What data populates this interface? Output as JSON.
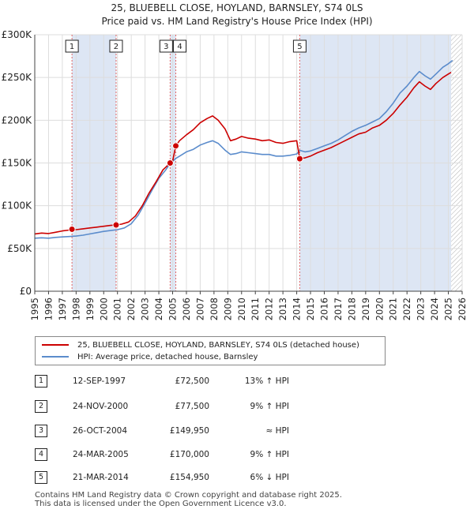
{
  "title_line1": "25, BLUEBELL CLOSE, HOYLAND, BARNSLEY, S74 0LS",
  "title_line2": "Price paid vs. HM Land Registry's House Price Index (HPI)",
  "chart_data": {
    "type": "line",
    "title": "25, BLUEBELL CLOSE, HOYLAND, BARNSLEY, S74 0LS — Price paid vs. HM Land Registry's House Price Index (HPI)",
    "xlabel": "",
    "ylabel": "",
    "xlim": [
      1995,
      2026
    ],
    "ylim": [
      0,
      300000
    ],
    "x_ticks": [
      "1995",
      "1996",
      "1997",
      "1998",
      "1999",
      "2000",
      "2001",
      "2002",
      "2003",
      "2004",
      "2005",
      "2006",
      "2007",
      "2008",
      "2009",
      "2010",
      "2011",
      "2012",
      "2013",
      "2014",
      "2015",
      "2016",
      "2017",
      "2018",
      "2019",
      "2020",
      "2021",
      "2022",
      "2023",
      "2024",
      "2025",
      "2026"
    ],
    "y_ticks": [
      {
        "value": 0,
        "label": "£0"
      },
      {
        "value": 50000,
        "label": "£50K"
      },
      {
        "value": 100000,
        "label": "£100K"
      },
      {
        "value": 150000,
        "label": "£150K"
      },
      {
        "value": 200000,
        "label": "£200K"
      },
      {
        "value": 250000,
        "label": "£250K"
      },
      {
        "value": 300000,
        "label": "£300K"
      }
    ],
    "grid": true,
    "forecast_from": 2025.2,
    "colors": {
      "property": "#cc0000",
      "hpi": "#5b8ccc",
      "marker_line": "#e06666",
      "shade": "#dde6f4",
      "grid": "#dddddd"
    },
    "series": [
      {
        "name": "25, BLUEBELL CLOSE, HOYLAND, BARNSLEY, S74 0LS (detached house)",
        "color": "#cc0000",
        "points": [
          [
            1995.0,
            67000
          ],
          [
            1995.5,
            68000
          ],
          [
            1996.0,
            67500
          ],
          [
            1996.5,
            69000
          ],
          [
            1997.0,
            70500
          ],
          [
            1997.5,
            71500
          ],
          [
            1997.7,
            72500
          ],
          [
            1998.0,
            72000
          ],
          [
            1998.5,
            73000
          ],
          [
            1999.0,
            74000
          ],
          [
            1999.5,
            75000
          ],
          [
            2000.0,
            76000
          ],
          [
            2000.5,
            77000
          ],
          [
            2000.9,
            77500
          ],
          [
            2001.3,
            78500
          ],
          [
            2001.8,
            81000
          ],
          [
            2002.3,
            88000
          ],
          [
            2002.8,
            100000
          ],
          [
            2003.3,
            115000
          ],
          [
            2003.8,
            128000
          ],
          [
            2004.3,
            142000
          ],
          [
            2004.82,
            149950
          ],
          [
            2005.0,
            152000
          ],
          [
            2005.23,
            170000
          ],
          [
            2005.5,
            176000
          ],
          [
            2006.0,
            183000
          ],
          [
            2006.5,
            189000
          ],
          [
            2007.0,
            197000
          ],
          [
            2007.5,
            202000
          ],
          [
            2007.9,
            205000
          ],
          [
            2008.3,
            200000
          ],
          [
            2008.8,
            190000
          ],
          [
            2009.2,
            176000
          ],
          [
            2009.6,
            178000
          ],
          [
            2010.0,
            181000
          ],
          [
            2010.5,
            179000
          ],
          [
            2011.0,
            178000
          ],
          [
            2011.5,
            176000
          ],
          [
            2012.0,
            177000
          ],
          [
            2012.5,
            174000
          ],
          [
            2013.0,
            173000
          ],
          [
            2013.5,
            175000
          ],
          [
            2014.0,
            176000
          ],
          [
            2014.22,
            154950
          ],
          [
            2014.6,
            156000
          ],
          [
            2015.0,
            158000
          ],
          [
            2015.5,
            162000
          ],
          [
            2016.0,
            165000
          ],
          [
            2016.5,
            168000
          ],
          [
            2017.0,
            172000
          ],
          [
            2017.5,
            176000
          ],
          [
            2018.0,
            180000
          ],
          [
            2018.5,
            184000
          ],
          [
            2019.0,
            186000
          ],
          [
            2019.5,
            191000
          ],
          [
            2020.0,
            194000
          ],
          [
            2020.5,
            200000
          ],
          [
            2021.0,
            208000
          ],
          [
            2021.5,
            218000
          ],
          [
            2022.0,
            227000
          ],
          [
            2022.5,
            238000
          ],
          [
            2022.9,
            245000
          ],
          [
            2023.3,
            240000
          ],
          [
            2023.7,
            236000
          ],
          [
            2024.1,
            243000
          ],
          [
            2024.6,
            250000
          ],
          [
            2025.0,
            254000
          ],
          [
            2025.2,
            256000
          ]
        ]
      },
      {
        "name": "HPI: Average price, detached house, Barnsley",
        "color": "#5b8ccc",
        "points": [
          [
            1995.0,
            62000
          ],
          [
            1995.5,
            62500
          ],
          [
            1996.0,
            62000
          ],
          [
            1996.5,
            63000
          ],
          [
            1997.0,
            63500
          ],
          [
            1997.5,
            64000
          ],
          [
            1998.0,
            64500
          ],
          [
            1998.5,
            65500
          ],
          [
            1999.0,
            67000
          ],
          [
            1999.5,
            68500
          ],
          [
            2000.0,
            70000
          ],
          [
            2000.5,
            71000
          ],
          [
            2001.0,
            72000
          ],
          [
            2001.5,
            74000
          ],
          [
            2002.0,
            79000
          ],
          [
            2002.5,
            89000
          ],
          [
            2003.0,
            103000
          ],
          [
            2003.5,
            118000
          ],
          [
            2004.0,
            132000
          ],
          [
            2004.5,
            142000
          ],
          [
            2004.82,
            149500
          ],
          [
            2005.2,
            155000
          ],
          [
            2005.6,
            159000
          ],
          [
            2006.0,
            163000
          ],
          [
            2006.5,
            166000
          ],
          [
            2007.0,
            171000
          ],
          [
            2007.5,
            174000
          ],
          [
            2007.9,
            176000
          ],
          [
            2008.3,
            173000
          ],
          [
            2008.8,
            165000
          ],
          [
            2009.2,
            160000
          ],
          [
            2009.6,
            161000
          ],
          [
            2010.0,
            163000
          ],
          [
            2010.5,
            162000
          ],
          [
            2011.0,
            161000
          ],
          [
            2011.5,
            160000
          ],
          [
            2012.0,
            160000
          ],
          [
            2012.5,
            158000
          ],
          [
            2013.0,
            158000
          ],
          [
            2013.5,
            159000
          ],
          [
            2014.0,
            160500
          ],
          [
            2014.22,
            164800
          ],
          [
            2014.6,
            163000
          ],
          [
            2015.0,
            164000
          ],
          [
            2015.5,
            167000
          ],
          [
            2016.0,
            170000
          ],
          [
            2016.5,
            173000
          ],
          [
            2017.0,
            177000
          ],
          [
            2017.5,
            182000
          ],
          [
            2018.0,
            187000
          ],
          [
            2018.5,
            191000
          ],
          [
            2019.0,
            194000
          ],
          [
            2019.5,
            198000
          ],
          [
            2020.0,
            202000
          ],
          [
            2020.5,
            210000
          ],
          [
            2021.0,
            220000
          ],
          [
            2021.5,
            232000
          ],
          [
            2022.0,
            240000
          ],
          [
            2022.5,
            250000
          ],
          [
            2022.9,
            257000
          ],
          [
            2023.3,
            252000
          ],
          [
            2023.7,
            248000
          ],
          [
            2024.1,
            254000
          ],
          [
            2024.6,
            262000
          ],
          [
            2025.0,
            266000
          ],
          [
            2025.3,
            270000
          ]
        ]
      }
    ],
    "sales": [
      {
        "num": "1",
        "x": 1997.7,
        "value": 72500
      },
      {
        "num": "2",
        "x": 2000.9,
        "value": 77500
      },
      {
        "num": "3",
        "x": 2004.82,
        "value": 149950
      },
      {
        "num": "4",
        "x": 2005.23,
        "value": 170000
      },
      {
        "num": "5",
        "x": 2014.22,
        "value": 154950
      }
    ]
  },
  "legend": {
    "property_label": "25, BLUEBELL CLOSE, HOYLAND, BARNSLEY, S74 0LS (detached house)",
    "hpi_label": "HPI: Average price, detached house, Barnsley"
  },
  "transactions": [
    {
      "num": "1",
      "date": "12-SEP-1997",
      "price": "£72,500",
      "relation": "13% ↑ HPI"
    },
    {
      "num": "2",
      "date": "24-NOV-2000",
      "price": "£77,500",
      "relation": "9% ↑ HPI"
    },
    {
      "num": "3",
      "date": "26-OCT-2004",
      "price": "£149,950",
      "relation": "≈ HPI"
    },
    {
      "num": "4",
      "date": "24-MAR-2005",
      "price": "£170,000",
      "relation": "9% ↑ HPI"
    },
    {
      "num": "5",
      "date": "21-MAR-2014",
      "price": "£154,950",
      "relation": "6% ↓ HPI"
    }
  ],
  "footer": {
    "line1": "Contains HM Land Registry data © Crown copyright and database right 2025.",
    "line2": "This data is licensed under the Open Government Licence v3.0."
  }
}
